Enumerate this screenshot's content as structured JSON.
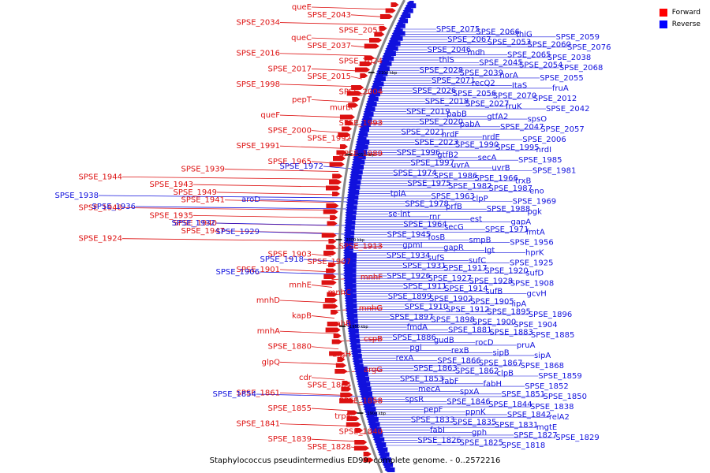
{
  "title": "Staphylococcus pseudintermedius ED99, complete genome. - 0..2572216",
  "legend": [
    {
      "label": "Forward",
      "color": "#ff0000"
    },
    {
      "label": "Reverse",
      "color": "#0000ff"
    }
  ],
  "colors": {
    "forward": "#dd1111",
    "reverse": "#1111dd",
    "backbone": "#888888"
  },
  "ticks": [
    "2100 kbp",
    "2050 kbp",
    "2000 kbp",
    "1950 kbp",
    "1900 kbp"
  ],
  "forward_genes": [
    "queE",
    "SPSE_2043",
    "SPSE_2034",
    "SPSE_2051",
    "queC",
    "SPSE_2037",
    "SPSE_2016",
    "SPSE_2024",
    "SPSE_2017",
    "SPSE_2015",
    "SPSE_1998",
    "SPSE_2004",
    "pepT",
    "murB",
    "queF",
    "SPSE_1993",
    "SPSE_2000",
    "SPSE_1992",
    "SPSE_1991",
    "SPSE_1989",
    "SPSE_1965",
    "SPSE_1939",
    "SPSE_1944",
    "SPSE_1943",
    "SPSE_1949",
    "SPSE_1941",
    "SPSE_1948",
    "SPSE_1935",
    "SPSE_1940",
    "SPSE_1947",
    "SPSE_1924",
    "SPSE_1913",
    "SPSE_1903",
    "SPSE_1907",
    "SPSE_1901",
    "mnhF",
    "mnhE",
    "mnhC",
    "mnhD",
    "mnhG",
    "kapB",
    "mnhB",
    "mnhA",
    "cspB",
    "SPSE_1880",
    "argH",
    "glpQ",
    "argG",
    "cdr",
    "SPSE_1864",
    "SPSE_1861",
    "SPSE_1858",
    "SPSE_1855",
    "trpS",
    "SPSE_1841",
    "SPSE_1840",
    "SPSE_1839",
    "SPSE_1828"
  ],
  "reverse_genes_left": [
    "SPSE_1972",
    "SPSE_1938",
    "SPSE_1936",
    "SPSE_1932",
    "aroD",
    "SPSE_1929",
    "SPSE_1918",
    "SPSE_1906",
    "SPSE_1854"
  ],
  "reverse_genes_right": [
    "SPSE_2075",
    "SPSE_2066",
    "thiG",
    "SPSE_2059",
    "SPSE_2067",
    "SPSE_2053",
    "SPSE_2060",
    "SPSE_2076",
    "SPSE_2046",
    "mdh",
    "SPSE_2065",
    "SPSE_2038",
    "thiS",
    "SPSE_2045",
    "SPSE_2054",
    "SPSE_2068",
    "SPSE_2028",
    "SPSE_2039",
    "norA",
    "SPSE_2055",
    "SPSE_2071",
    "recQ2",
    "ItaS",
    "fruA",
    "SPSE_2026",
    "SPSE_2056",
    "SPSE_2070",
    "SPSE_2012",
    "SPSE_2018",
    "SPSE_2027",
    "fruK",
    "SPSE_2042",
    "SPSE_2019",
    "pabB",
    "gtfA2",
    "spsO",
    "SPSE_2020",
    "pabA",
    "SPSE_2047",
    "SPSE_2057",
    "SPSE_2021",
    "nrdF",
    "nrdE",
    "SPSE_2006",
    "SPSE_2023",
    "SPSE_1990",
    "SPSE_1995",
    "nrdI",
    "SPSE_1996",
    "gtfB2",
    "secA",
    "SPSE_1985",
    "SPSE_1997",
    "uvrA",
    "uvrB",
    "SPSE_1981",
    "SPSE_1974",
    "SPSE_1986",
    "SPSE_1966",
    "trxB",
    "SPSE_1975",
    "SPSE_1982",
    "SPSE_1987",
    "eno",
    "tpiA",
    "SPSE_1963",
    "clpP",
    "SPSE_1969",
    "SPSE_1978",
    "prfB",
    "SPSE_1988",
    "pgk",
    "se-int",
    "rnr",
    "est",
    "gapA",
    "SPSE_1964",
    "secG",
    "SPSE_1971",
    "fmtA",
    "SPSE_1945",
    "fosB",
    "smpB",
    "SPSE_1956",
    "gpmI",
    "gapR",
    "Igt",
    "hprK",
    "SPSE_1934",
    "sufS",
    "sufC",
    "SPSE_1925",
    "SPSE_1931",
    "SPSE_1917",
    "SPSE_1920",
    "sufD",
    "SPSE_1926",
    "SPSE_1927",
    "SPSE_1928",
    "SPSE_1908",
    "SPSE_1911",
    "SPSE_1914",
    "sufB",
    "gcvH",
    "SPSE_1899",
    "SPSE_1902",
    "SPSE_1905",
    "lipA",
    "SPSE_1910",
    "SPSE_1912",
    "SPSE_1895",
    "SPSE_1896",
    "SPSE_1897",
    "SPSE_1898",
    "SPSE_1900",
    "SPSE_1904",
    "fmdA",
    "SPSE_1881",
    "SPSE_1883",
    "SPSE_1885",
    "SPSE_1886",
    "gudB",
    "rocD",
    "pruA",
    "pgi",
    "rexB",
    "sipB",
    "sipA",
    "rexA",
    "SPSE_1866",
    "SPSE_1867",
    "SPSE_1868",
    "SPSE_1863",
    "SPSE_1862",
    "clpB",
    "SPSE_1859",
    "SPSE_1853",
    "fabF",
    "fabH",
    "SPSE_1852",
    "mecA",
    "spxA",
    "SPSE_1851",
    "SPSE_1850",
    "spsR",
    "SPSE_1846",
    "SPSE_1844",
    "SPSE_1838",
    "pepF",
    "ppnK",
    "SPSE_1842",
    "relA2",
    "SPSE_1833",
    "SPSE_1835",
    "SPSE_1831",
    "mgtE",
    "fabI",
    "gph",
    "SPSE_1827",
    "SPSE_1829",
    "SPSE_1826",
    "SPSE_1825",
    "SPSE_1818"
  ]
}
